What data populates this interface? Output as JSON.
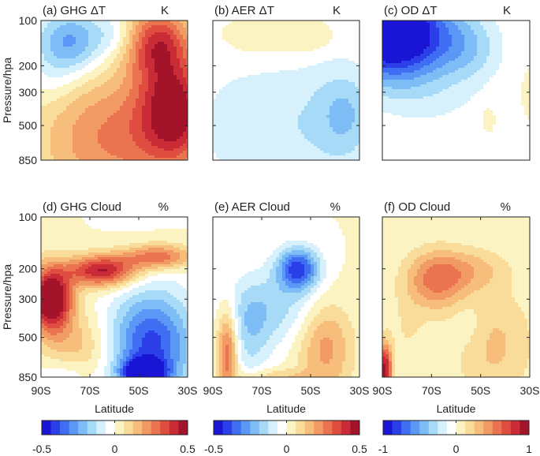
{
  "chart_data": [
    {
      "id": "a",
      "type": "heatmap",
      "title": "(a) GHG ΔT",
      "unit": "K",
      "xlabel": "",
      "ylabel": "Pressure/hpa",
      "xlim": [
        -90,
        -30
      ],
      "ylim": [
        100,
        850
      ],
      "yscale": "log",
      "yticks": [
        100,
        200,
        300,
        500,
        850
      ],
      "ytick_labels": [
        "100",
        "200",
        "300",
        "500",
        "850"
      ],
      "xtick_labels": [],
      "features": [
        {
          "lat": -78,
          "p": 140,
          "value": -0.28,
          "sigma_lat": 10,
          "sigma_p": 0.35
        },
        {
          "lat": -60,
          "p": 125,
          "value": -0.08,
          "sigma_lat": 6,
          "sigma_p": 0.22
        },
        {
          "lat": -42,
          "p": 140,
          "value": 0.36,
          "sigma_lat": 9,
          "sigma_p": 0.4
        },
        {
          "lat": -35,
          "p": 400,
          "value": 0.42,
          "sigma_lat": 10,
          "sigma_p": 0.55
        },
        {
          "lat": -60,
          "p": 600,
          "value": 0.26,
          "sigma_lat": 22,
          "sigma_p": 0.75
        },
        {
          "lat": -85,
          "p": 250,
          "value": -0.06,
          "sigma_lat": 7,
          "sigma_p": 0.3
        }
      ]
    },
    {
      "id": "b",
      "type": "heatmap",
      "title": "(b) AER ΔT",
      "unit": "K",
      "xlabel": "",
      "ylabel": "",
      "xlim": [
        -90,
        -30
      ],
      "ylim": [
        100,
        850
      ],
      "yscale": "log",
      "yticks": [
        100,
        200,
        300,
        500,
        850
      ],
      "ytick_labels": [],
      "xtick_labels": [],
      "features": [
        {
          "lat": -68,
          "p": 140,
          "value": 0.06,
          "sigma_lat": 14,
          "sigma_p": 0.28
        },
        {
          "lat": -50,
          "p": 130,
          "value": 0.07,
          "sigma_lat": 6,
          "sigma_p": 0.15
        },
        {
          "lat": -60,
          "p": 500,
          "value": -0.12,
          "sigma_lat": 28,
          "sigma_p": 0.9
        },
        {
          "lat": -36,
          "p": 420,
          "value": -0.13,
          "sigma_lat": 8,
          "sigma_p": 0.45
        }
      ]
    },
    {
      "id": "c",
      "type": "heatmap",
      "title": "(c) OD ΔT",
      "unit": "K",
      "xlabel": "",
      "ylabel": "",
      "xlim": [
        -90,
        -30
      ],
      "ylim": [
        100,
        850
      ],
      "yscale": "log",
      "yticks": [
        100,
        200,
        300,
        500,
        850
      ],
      "ytick_labels": [],
      "xtick_labels": [],
      "features": [
        {
          "lat": -86,
          "p": 120,
          "value": -1.3,
          "sigma_lat": 16,
          "sigma_p": 0.5
        },
        {
          "lat": -55,
          "p": 150,
          "value": -0.28,
          "sigma_lat": 10,
          "sigma_p": 0.35
        },
        {
          "lat": -70,
          "p": 340,
          "value": -0.12,
          "sigma_lat": 18,
          "sigma_p": 0.4
        },
        {
          "lat": -47,
          "p": 440,
          "value": 0.09,
          "sigma_lat": 2,
          "sigma_p": 0.15
        },
        {
          "lat": -30,
          "p": 300,
          "value": 0.08,
          "sigma_lat": 2,
          "sigma_p": 0.2
        }
      ]
    },
    {
      "id": "d",
      "type": "heatmap",
      "title": "(d) GHG Cloud",
      "unit": "%",
      "xlabel": "Latitude",
      "ylabel": "Pressure/hpa",
      "xlim": [
        -90,
        -30
      ],
      "ylim": [
        100,
        850
      ],
      "yscale": "log",
      "yticks": [
        100,
        200,
        300,
        500,
        850
      ],
      "ytick_labels": [
        "100",
        "200",
        "300",
        "500",
        "850"
      ],
      "xticks": [
        -90,
        -70,
        -50,
        -30
      ],
      "xtick_labels": [
        "90S",
        "70S",
        "50S",
        "30S"
      ],
      "features": [
        {
          "lat": -86,
          "p": 300,
          "value": 0.6,
          "sigma_lat": 6,
          "sigma_p": 0.3
        },
        {
          "lat": -65,
          "p": 205,
          "value": 0.45,
          "sigma_lat": 10,
          "sigma_p": 0.15
        },
        {
          "lat": -42,
          "p": 170,
          "value": 0.3,
          "sigma_lat": 10,
          "sigma_p": 0.12
        },
        {
          "lat": -45,
          "p": 550,
          "value": -0.4,
          "sigma_lat": 12,
          "sigma_p": 0.5
        },
        {
          "lat": -48,
          "p": 800,
          "value": -0.5,
          "sigma_lat": 6,
          "sigma_p": 0.12
        },
        {
          "lat": -75,
          "p": 580,
          "value": 0.15,
          "sigma_lat": 10,
          "sigma_p": 0.35
        },
        {
          "lat": -80,
          "p": 800,
          "value": -0.1,
          "sigma_lat": 8,
          "sigma_p": 0.15
        }
      ]
    },
    {
      "id": "e",
      "type": "heatmap",
      "title": "(e) AER Cloud",
      "unit": "%",
      "xlabel": "Latitude",
      "ylabel": "",
      "xlim": [
        -90,
        -30
      ],
      "ylim": [
        100,
        850
      ],
      "yscale": "log",
      "yticks": [
        100,
        200,
        300,
        500,
        850
      ],
      "ytick_labels": [],
      "xticks": [
        -90,
        -70,
        -50,
        -30
      ],
      "xtick_labels": [
        "90S",
        "70S",
        "50S",
        "30S"
      ],
      "features": [
        {
          "lat": -55,
          "p": 200,
          "value": -0.4,
          "sigma_lat": 6,
          "sigma_p": 0.2
        },
        {
          "lat": -65,
          "p": 340,
          "value": -0.15,
          "sigma_lat": 14,
          "sigma_p": 0.35
        },
        {
          "lat": -84,
          "p": 600,
          "value": 0.32,
          "sigma_lat": 3,
          "sigma_p": 0.4
        },
        {
          "lat": -44,
          "p": 560,
          "value": 0.22,
          "sigma_lat": 8,
          "sigma_p": 0.45
        },
        {
          "lat": -75,
          "p": 500,
          "value": -0.12,
          "sigma_lat": 6,
          "sigma_p": 0.45
        },
        {
          "lat": -65,
          "p": 850,
          "value": 0.12,
          "sigma_lat": 12,
          "sigma_p": 0.08
        }
      ]
    },
    {
      "id": "f",
      "type": "heatmap",
      "title": "(f) OD Cloud",
      "unit": "%",
      "xlabel": "Latitude",
      "ylabel": "",
      "xlim": [
        -90,
        -30
      ],
      "ylim": [
        100,
        850
      ],
      "yscale": "log",
      "yticks": [
        100,
        200,
        300,
        500,
        850
      ],
      "ytick_labels": [],
      "xticks": [
        -90,
        -70,
        -50,
        -30
      ],
      "xtick_labels": [
        "90S",
        "70S",
        "50S",
        "30S"
      ],
      "features": [
        {
          "lat": -68,
          "p": 230,
          "value": 0.55,
          "sigma_lat": 9,
          "sigma_p": 0.28
        },
        {
          "lat": -52,
          "p": 200,
          "value": 0.22,
          "sigma_lat": 10,
          "sigma_p": 0.2
        },
        {
          "lat": -89,
          "p": 780,
          "value": 0.95,
          "sigma_lat": 2,
          "sigma_p": 0.25
        },
        {
          "lat": -45,
          "p": 550,
          "value": 0.28,
          "sigma_lat": 12,
          "sigma_p": 0.55
        },
        {
          "lat": -80,
          "p": 460,
          "value": 0.12,
          "sigma_lat": 6,
          "sigma_p": 0.4
        },
        {
          "lat": -55,
          "p": 420,
          "value": -0.12,
          "sigma_lat": 5,
          "sigma_p": 0.25
        }
      ]
    }
  ],
  "colorbars": [
    {
      "id": "cb1",
      "min": -0.5,
      "max": 0.5,
      "tick_values": [
        -0.5,
        0,
        0.5
      ],
      "tick_labels": [
        "-0.5",
        "0",
        "0.5"
      ]
    },
    {
      "id": "cb2",
      "min": -0.5,
      "max": 0.5,
      "tick_values": [
        -0.5,
        0,
        0.5
      ],
      "tick_labels": [
        "-0.5",
        "0",
        "0.5"
      ]
    },
    {
      "id": "cb3",
      "min": -1,
      "max": 1,
      "tick_values": [
        -1,
        0,
        1
      ],
      "tick_labels": [
        "-1",
        "0",
        "1"
      ]
    }
  ],
  "colormap": [
    "#1a14d4",
    "#2b3fe8",
    "#3f6ef2",
    "#5b98f5",
    "#7ebcf5",
    "#a6daf7",
    "#d6f1fb",
    "#ffffff",
    "#fbf3c2",
    "#fadc9a",
    "#f7bd7a",
    "#f29a63",
    "#ea7350",
    "#de4d40",
    "#c92c36",
    "#a3142a"
  ]
}
